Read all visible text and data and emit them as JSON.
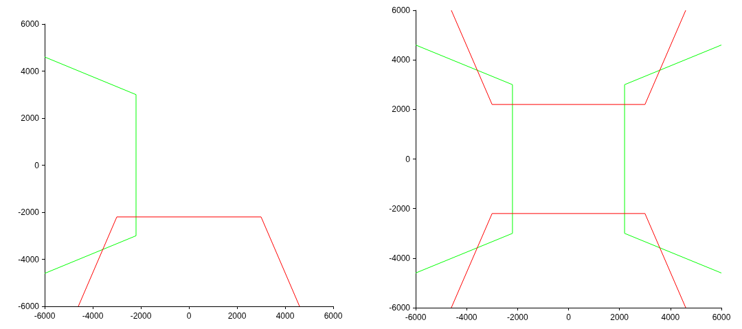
{
  "chart_data": [
    {
      "type": "line",
      "xlim": [
        -6000,
        6000
      ],
      "ylim": [
        -6000,
        6000
      ],
      "xticks": [
        -6000,
        -4000,
        -2000,
        0,
        2000,
        4000,
        6000
      ],
      "yticks": [
        -6000,
        -4000,
        -2000,
        0,
        2000,
        4000,
        6000
      ],
      "grid": false,
      "marker": "none",
      "line_style": "solid",
      "series": [
        {
          "color": "#00ff00",
          "x": [
            -6000,
            -2200,
            -2200,
            -6000
          ],
          "values": [
            4600,
            3000,
            -3000,
            -4600
          ]
        },
        {
          "color": "#ff0000",
          "x": [
            -4600,
            -3000,
            3000,
            4600
          ],
          "values": [
            -6000,
            -2200,
            -2200,
            -6000
          ]
        }
      ]
    },
    {
      "type": "line",
      "xlim": [
        -6000,
        6000
      ],
      "ylim": [
        -6000,
        6000
      ],
      "xticks": [
        -6000,
        -4000,
        -2000,
        0,
        2000,
        4000,
        6000
      ],
      "yticks": [
        -6000,
        -4000,
        -2000,
        0,
        2000,
        4000,
        6000
      ],
      "grid": false,
      "marker": "none",
      "line_style": "solid",
      "series": [
        {
          "color": "#00ff00",
          "x": [
            -6000,
            -2200,
            -2200,
            -6000
          ],
          "values": [
            4600,
            3000,
            -3000,
            -4600
          ]
        },
        {
          "color": "#00ff00",
          "x": [
            6000,
            2200,
            2200,
            6000
          ],
          "values": [
            4600,
            3000,
            -3000,
            -4600
          ]
        },
        {
          "color": "#ff0000",
          "x": [
            -4600,
            -3000,
            3000,
            4600
          ],
          "values": [
            6000,
            2200,
            2200,
            6000
          ]
        },
        {
          "color": "#ff0000",
          "x": [
            -4600,
            -3000,
            3000,
            4600
          ],
          "values": [
            -6000,
            -2200,
            -2200,
            -6000
          ]
        }
      ]
    }
  ]
}
